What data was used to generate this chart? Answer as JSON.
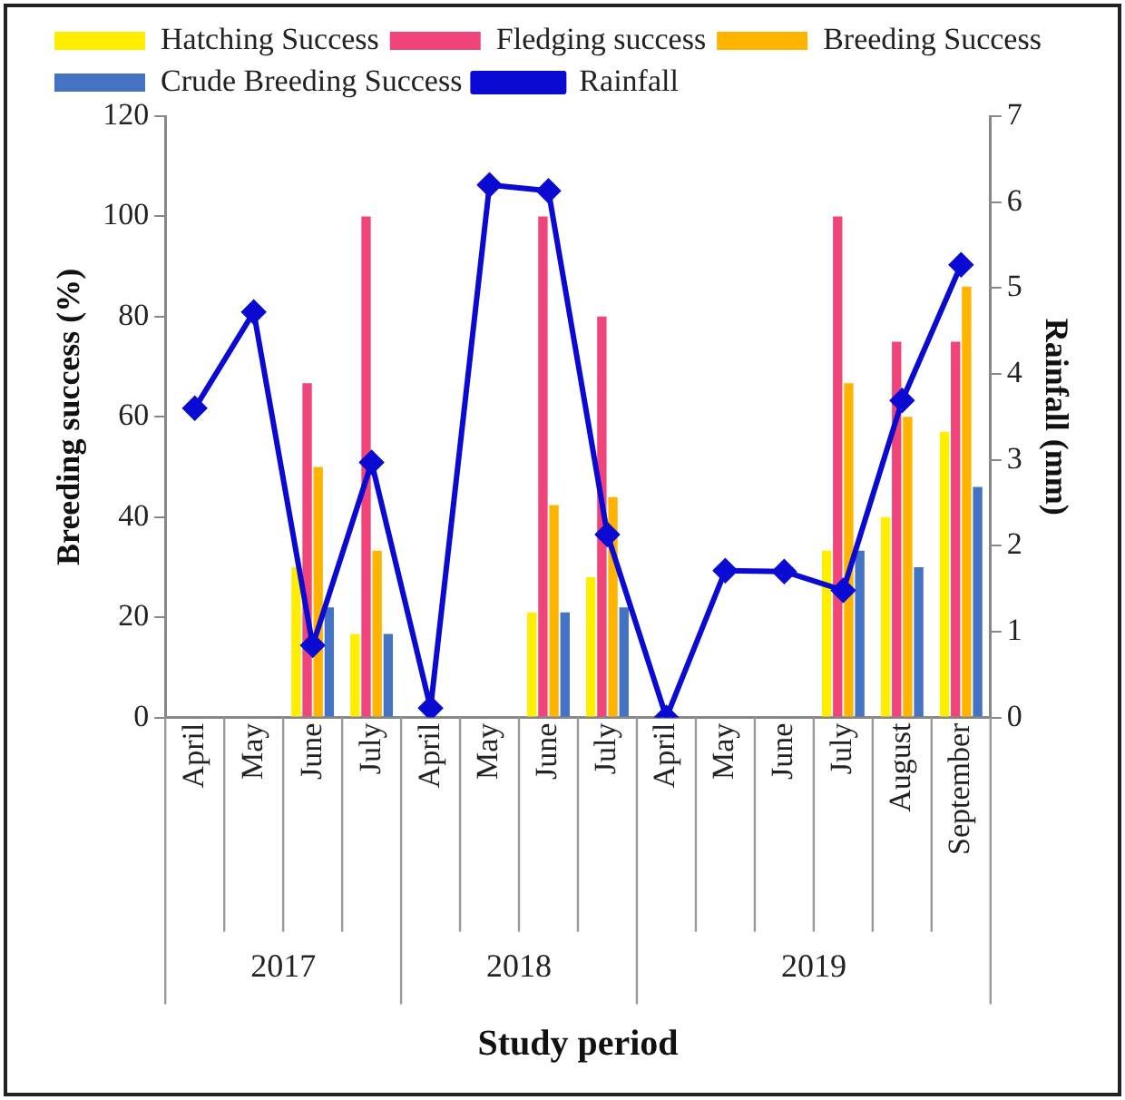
{
  "chart_data": {
    "type": "bar",
    "categories": [
      "April",
      "May",
      "June",
      "July",
      "April",
      "May",
      "June",
      "July",
      "April",
      "May",
      "June",
      "July",
      "August",
      "September"
    ],
    "series": [
      {
        "name": "Hatching Success",
        "color": "#ffee00",
        "values": [
          null,
          null,
          30,
          16.7,
          null,
          null,
          21,
          28,
          null,
          null,
          null,
          33.3,
          40,
          57
        ]
      },
      {
        "name": "Fledging success",
        "color": "#f0457a",
        "values": [
          null,
          null,
          66.7,
          100,
          null,
          null,
          100,
          80,
          null,
          null,
          null,
          100,
          75,
          75
        ]
      },
      {
        "name": "Breeding Success",
        "color": "#ffb400",
        "values": [
          null,
          null,
          50,
          33.3,
          null,
          null,
          42.4,
          44,
          null,
          null,
          null,
          66.7,
          60,
          86
        ]
      },
      {
        "name": "Crude Breeding Success",
        "color": "#4472c4",
        "values": [
          null,
          null,
          22,
          16.7,
          null,
          null,
          21,
          22,
          null,
          null,
          null,
          33.3,
          30,
          46
        ]
      },
      {
        "name": "Rainfall",
        "type": "line",
        "axis": "y2",
        "color": "#0a0ad2",
        "marker": "diamond",
        "values": [
          3.6,
          4.72,
          0.84,
          2.97,
          0.11,
          6.2,
          6.13,
          2.13,
          0,
          1.71,
          1.7,
          1.48,
          3.69,
          5.27
        ]
      }
    ],
    "xlabel": "Study period",
    "ylabel": "Breeding success (%)",
    "y2label": "Rainfall (mm)",
    "ylim": [
      0,
      120
    ],
    "yticks": [
      0,
      20,
      40,
      60,
      80,
      100,
      120
    ],
    "y2lim": [
      0,
      7
    ],
    "y2ticks": [
      0,
      1,
      2,
      3,
      4,
      5,
      6,
      7
    ],
    "annotations": [
      "2017",
      "2018",
      "2019"
    ],
    "grid": false,
    "legend": "top"
  }
}
